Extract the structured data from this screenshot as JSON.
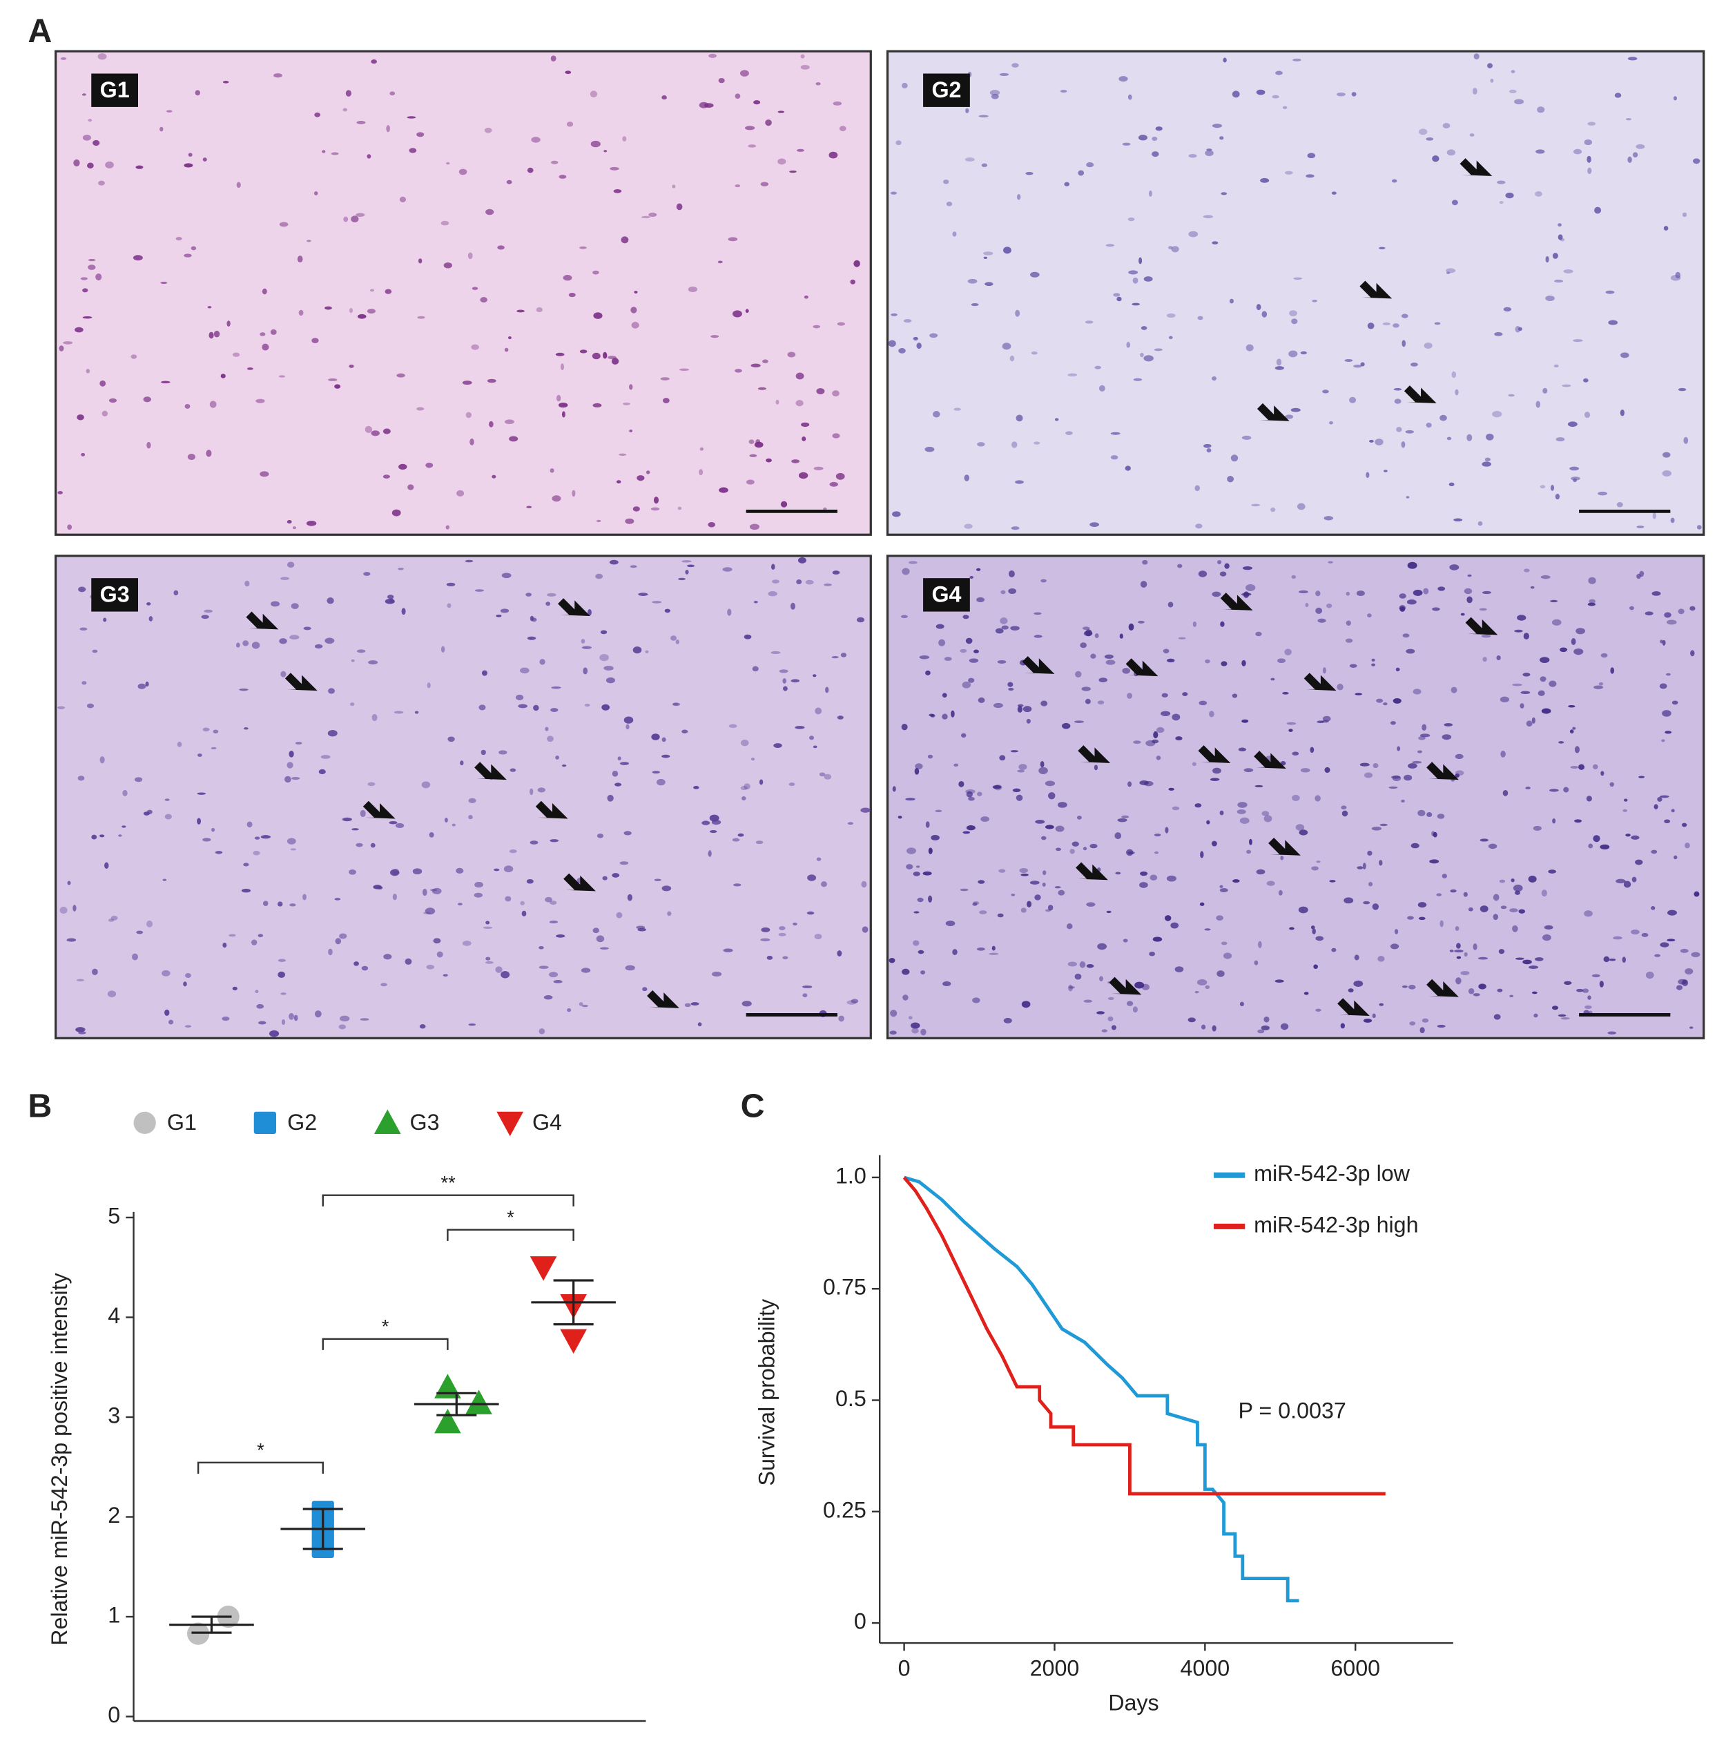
{
  "panel_labels": [
    "A",
    "B",
    "C"
  ],
  "images": [
    {
      "label": "G1"
    },
    {
      "label": "G2"
    },
    {
      "label": "G3"
    },
    {
      "label": "G4"
    }
  ],
  "chart_data": [
    {
      "type": "dot",
      "ylabel": "Relative miR-542-3p positive intensity",
      "ylim": [
        0,
        5
      ],
      "yticks": [
        0,
        1,
        2,
        3,
        4,
        5
      ],
      "series": [
        {
          "name": "G1",
          "color": "#c0c0c0",
          "marker": "circle",
          "values": [
            0.83,
            1.0
          ],
          "mean": 0.92,
          "sem": 0.08
        },
        {
          "name": "G2",
          "color": "#1f8ed6",
          "marker": "square",
          "values": [
            2.05,
            1.88,
            1.7
          ],
          "mean": 1.88,
          "sem": 0.2
        },
        {
          "name": "G3",
          "color": "#2ca02c",
          "marker": "triangle-up",
          "values": [
            3.3,
            3.14,
            2.95
          ],
          "mean": 3.13,
          "sem": 0.11
        },
        {
          "name": "G4",
          "color": "#e0201b",
          "marker": "triangle-down",
          "values": [
            4.5,
            4.12,
            3.77
          ],
          "mean": 4.15,
          "sem": 0.22
        }
      ],
      "annotations": [
        "*",
        "*",
        "*",
        "**"
      ]
    },
    {
      "type": "survival",
      "xlabel": "Days",
      "ylabel": "Survival probability",
      "xlim": [
        -325,
        7300
      ],
      "xticks": [
        0,
        2000,
        4000,
        6000
      ],
      "ylim": [
        -0.045,
        1.05
      ],
      "yticks": [
        0,
        0.25,
        0.5,
        0.75,
        {
          "value": 1,
          "label": "1.0"
        }
      ],
      "annotation": "P = 0.0037",
      "series": [
        {
          "name": "miR-542-3p low",
          "color": "#1f9ad6",
          "x": [
            0,
            200,
            500,
            800,
            1000,
            1200,
            1500,
            1700,
            1900,
            2100,
            2400,
            2700,
            2900,
            3100,
            3500,
            3500,
            3900,
            3900,
            4000,
            4000,
            4100,
            4250,
            4250,
            4400,
            4400,
            4500,
            4500,
            4700,
            4700,
            5100,
            5100,
            5250
          ],
          "values": [
            1,
            0.99,
            0.95,
            0.9,
            0.87,
            0.84,
            0.8,
            0.76,
            0.71,
            0.66,
            0.63,
            0.58,
            0.55,
            0.51,
            0.51,
            0.47,
            0.45,
            0.4,
            0.4,
            0.3,
            0.3,
            0.27,
            0.2,
            0.2,
            0.15,
            0.15,
            0.1,
            0.1,
            0.1,
            0.1,
            0.05,
            0.05
          ]
        },
        {
          "name": "miR-542-3p high",
          "color": "#e0201b",
          "x": [
            0,
            150,
            300,
            500,
            700,
            900,
            1100,
            1300,
            1500,
            1800,
            1800,
            1950,
            1950,
            2250,
            2250,
            2900,
            3000,
            3000,
            6400
          ],
          "values": [
            1,
            0.97,
            0.93,
            0.87,
            0.8,
            0.73,
            0.66,
            0.6,
            0.53,
            0.53,
            0.5,
            0.47,
            0.44,
            0.44,
            0.4,
            0.4,
            0.4,
            0.29,
            0.29
          ]
        }
      ]
    }
  ]
}
